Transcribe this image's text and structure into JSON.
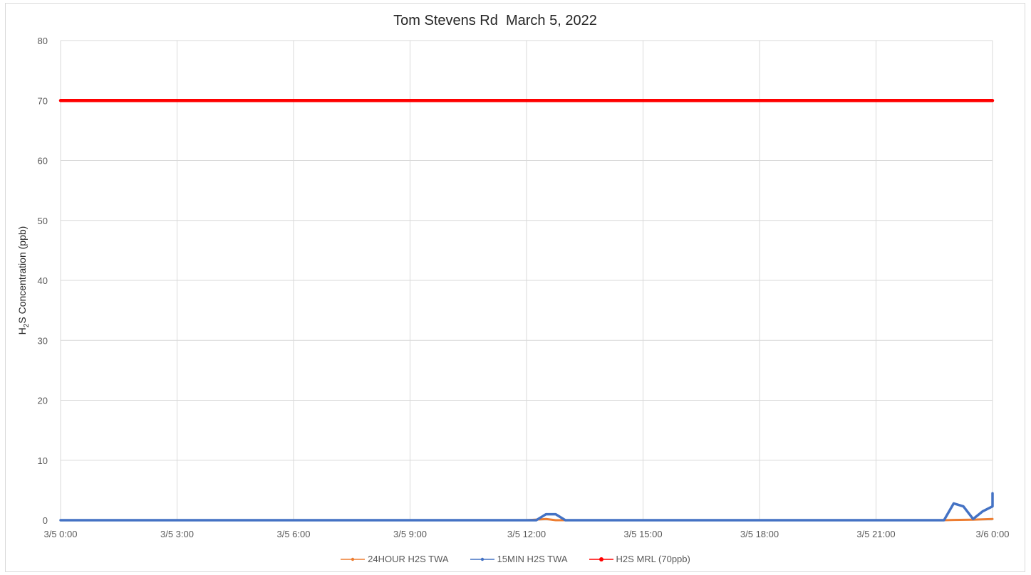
{
  "chart_data": {
    "type": "line",
    "title": "Tom Stevens Rd  March 5, 2022",
    "ylabel": "H2S Concentration (ppb)",
    "ylabel_parts": {
      "pre": "H",
      "sub": "2",
      "post": "S Concentration (ppb)"
    },
    "xlabel": "",
    "ylim": [
      0,
      80
    ],
    "yticks": [
      0,
      10,
      20,
      30,
      40,
      50,
      60,
      70,
      80
    ],
    "xlim_hours": [
      0,
      24
    ],
    "x_tick_labels": [
      "3/5 0:00",
      "3/5 3:00",
      "3/5 6:00",
      "3/5 9:00",
      "3/5 12:00",
      "3/5 15:00",
      "3/5 18:00",
      "3/5 21:00",
      "3/6 0:00"
    ],
    "grid": true,
    "legend_position": "bottom",
    "series": [
      {
        "name": "24HOUR H2S TWA",
        "color": "#ed7d31",
        "points": [
          [
            "3/5 0:00",
            0
          ],
          [
            "3/5 12:00",
            0
          ],
          [
            "3/5 12:30",
            0.2
          ],
          [
            "3/5 12:45",
            0
          ],
          [
            "3/5 22:45",
            0
          ],
          [
            "3/5 23:00",
            0.05
          ],
          [
            "3/5 23:30",
            0.1
          ],
          [
            "3/5 23:45",
            0.15
          ],
          [
            "3/6 0:00",
            0.2
          ]
        ]
      },
      {
        "name": "15MIN H2S TWA",
        "color": "#4472c4",
        "points": [
          [
            "3/5 0:00",
            0
          ],
          [
            "3/5 12:15",
            0
          ],
          [
            "3/5 12:30",
            1
          ],
          [
            "3/5 12:45",
            1
          ],
          [
            "3/5 13:00",
            0
          ],
          [
            "3/5 22:45",
            0
          ],
          [
            "3/5 23:00",
            2.8
          ],
          [
            "3/5 23:15",
            2.3
          ],
          [
            "3/5 23:30",
            0.2
          ],
          [
            "3/5 23:45",
            1.5
          ],
          [
            "3/6 0:00",
            2.3
          ],
          [
            "3/6 0:15",
            3.7
          ],
          [
            "3/6 0:30",
            4.5
          ],
          [
            "3/6 0:45",
            4.5
          ],
          [
            "3/6 1:00",
            3.7
          ]
        ]
      },
      {
        "name": "H2S MRL (70ppb)",
        "color": "#ff0000",
        "points": [
          [
            "3/5 0:00",
            70
          ],
          [
            "3/6 1:00",
            70
          ]
        ]
      }
    ]
  }
}
